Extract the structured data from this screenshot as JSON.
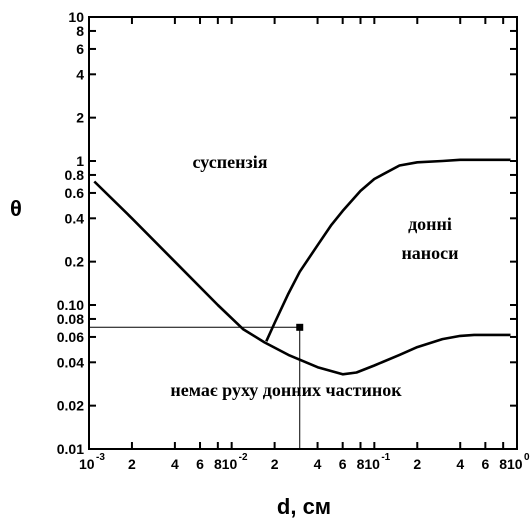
{
  "chart_data": {
    "type": "line",
    "xscale": "log",
    "yscale": "log",
    "xlim": [
      0.001,
      1
    ],
    "ylim": [
      0.01,
      10
    ],
    "xlabel": "d, см",
    "ylabel": "θ",
    "x_ticks": [
      {
        "base": "10",
        "exp": "-3",
        "value": 0.001
      },
      {
        "label": "2",
        "value": 0.002
      },
      {
        "label": "4",
        "value": 0.004
      },
      {
        "label": "6",
        "value": 0.006
      },
      {
        "label": "8",
        "value": 0.008
      },
      {
        "base": "10",
        "exp": "-2",
        "value": 0.01
      },
      {
        "label": "2",
        "value": 0.02
      },
      {
        "label": "4",
        "value": 0.04
      },
      {
        "label": "6",
        "value": 0.06
      },
      {
        "label": "8",
        "value": 0.08
      },
      {
        "base": "10",
        "exp": "-1",
        "value": 0.1
      },
      {
        "label": "2",
        "value": 0.2
      },
      {
        "label": "4",
        "value": 0.4
      },
      {
        "label": "6",
        "value": 0.6
      },
      {
        "label": "8",
        "value": 0.8
      },
      {
        "base": "10",
        "exp": "0",
        "value": 1
      }
    ],
    "y_ticks": [
      {
        "label": "0.01",
        "value": 0.01
      },
      {
        "label": "0.02",
        "value": 0.02
      },
      {
        "label": "0.04",
        "value": 0.04
      },
      {
        "label": "0.06",
        "value": 0.06
      },
      {
        "label": "0.08",
        "value": 0.08
      },
      {
        "label": "0.10",
        "value": 0.1
      },
      {
        "label": "0.2",
        "value": 0.2
      },
      {
        "label": "0.4",
        "value": 0.4
      },
      {
        "label": "0.6",
        "value": 0.6
      },
      {
        "label": "0.8",
        "value": 0.8
      },
      {
        "label": "1",
        "value": 1
      },
      {
        "label": "2",
        "value": 2
      },
      {
        "label": "4",
        "value": 4
      },
      {
        "label": "6",
        "value": 6
      },
      {
        "label": "8",
        "value": 8
      },
      {
        "label": "10",
        "value": 10
      }
    ],
    "series": [
      {
        "x": [
          0.00109,
          0.002,
          0.004,
          0.008,
          0.012,
          0.017,
          0.025,
          0.04,
          0.06,
          0.075,
          0.1,
          0.15,
          0.2,
          0.3,
          0.4,
          0.5,
          0.6,
          0.75,
          0.9
        ],
        "y": [
          0.72,
          0.4,
          0.2,
          0.1,
          0.068,
          0.055,
          0.045,
          0.037,
          0.033,
          0.034,
          0.038,
          0.045,
          0.051,
          0.058,
          0.061,
          0.062,
          0.062,
          0.062,
          0.062
        ]
      },
      {
        "x": [
          0.0175,
          0.02,
          0.025,
          0.03,
          0.04,
          0.05,
          0.06,
          0.08,
          0.1,
          0.15,
          0.2,
          0.3,
          0.4,
          0.6,
          0.9
        ],
        "y": [
          0.056,
          0.075,
          0.12,
          0.17,
          0.26,
          0.36,
          0.45,
          0.62,
          0.75,
          0.93,
          0.98,
          1.0,
          1.02,
          1.02,
          1.02
        ]
      }
    ],
    "marker": {
      "x": 0.03,
      "y": 0.07
    },
    "annotations": {
      "suspension": "суспензія",
      "bedload_1": "донні",
      "bedload_2": "наноси",
      "no_motion": "немає руху донних частинок"
    }
  }
}
